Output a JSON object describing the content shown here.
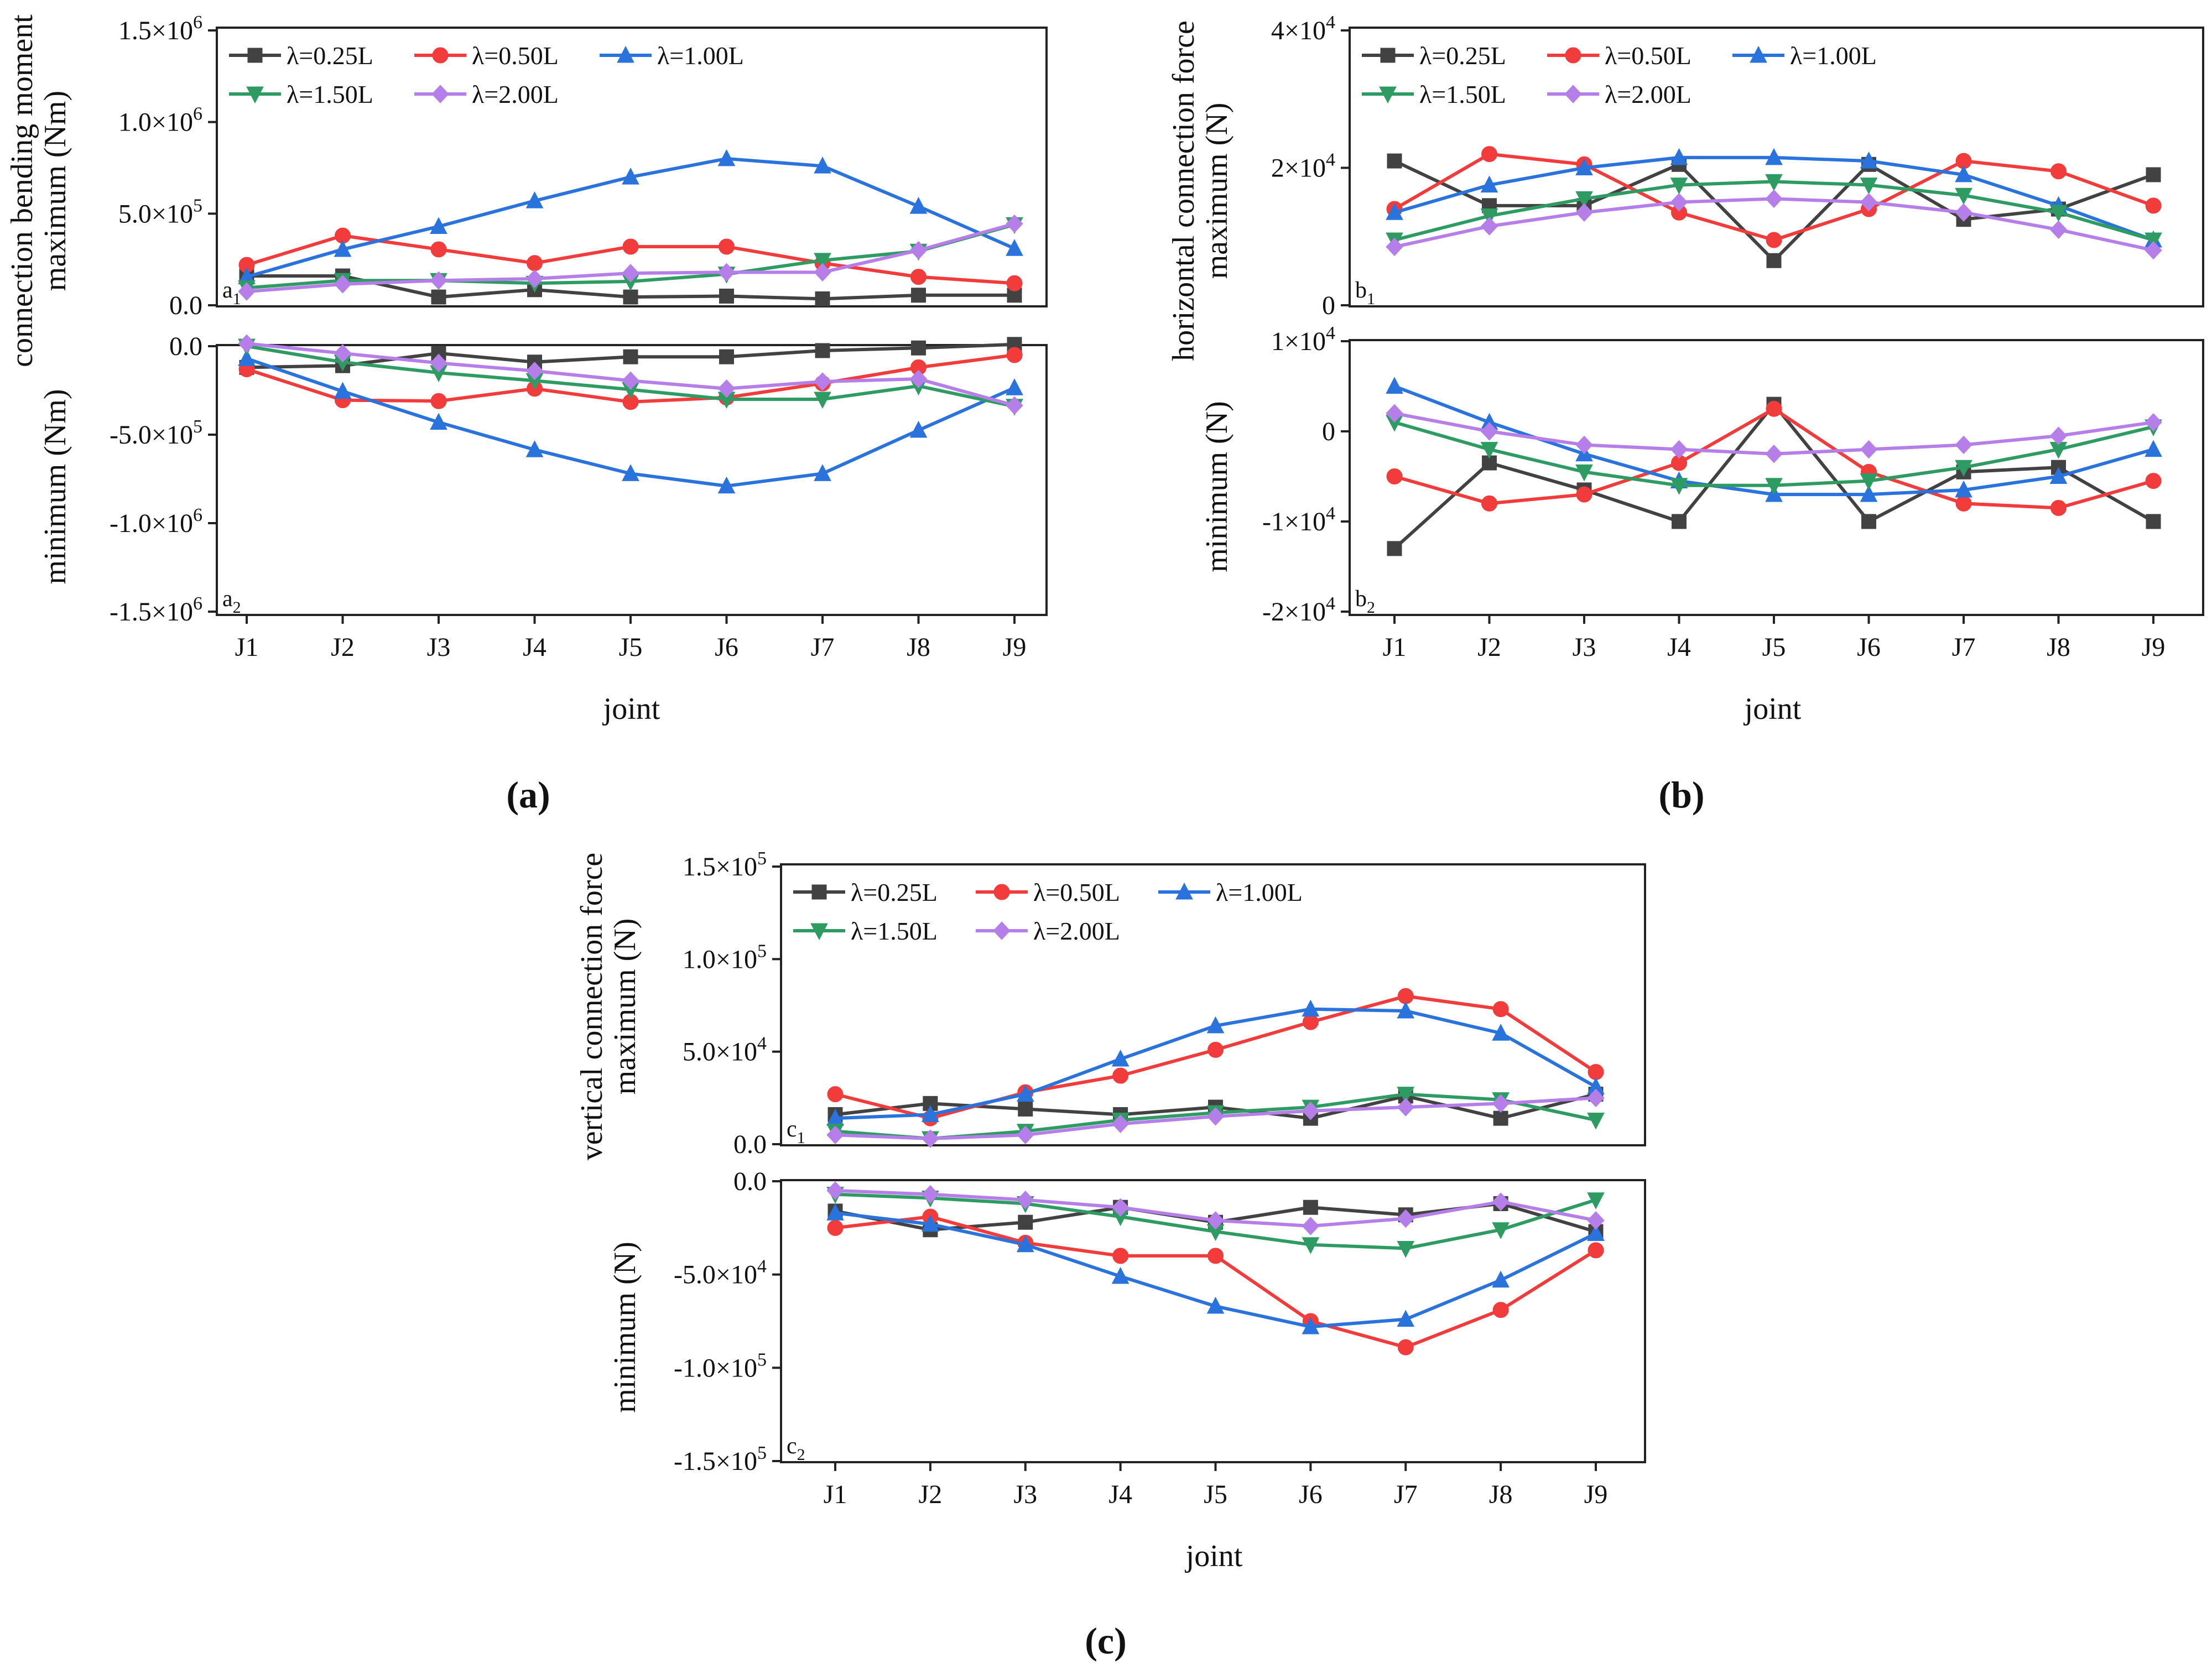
{
  "joint_label": "joint",
  "x_categories": [
    "J1",
    "J2",
    "J3",
    "J4",
    "J5",
    "J6",
    "J7",
    "J8",
    "J9"
  ],
  "series_styles": [
    {
      "name": "λ=0.25L",
      "color": "#424242",
      "marker": "square"
    },
    {
      "name": "λ=0.50L",
      "color": "#f23b3b",
      "marker": "circle"
    },
    {
      "name": "λ=1.00L",
      "color": "#2a73dc",
      "marker": "triangle-up"
    },
    {
      "name": "λ=1.50L",
      "color": "#2e9b63",
      "marker": "triangle-down"
    },
    {
      "name": "λ=2.00L",
      "color": "#b57ee8",
      "marker": "diamond"
    }
  ],
  "subfigures": [
    {
      "label": "(a)",
      "label_letter": "a"
    },
    {
      "label": "(b)",
      "label_letter": "b"
    },
    {
      "label": "(c)",
      "label_letter": "c"
    }
  ],
  "chart_data": [
    {
      "id": "a1",
      "type": "line",
      "panel_tag": "a",
      "panel_sub": "1",
      "ylabel": "connection bending moment",
      "ylabel_sub": "maximum (Nm)",
      "ylim": [
        0,
        1500000
      ],
      "yticks": [
        {
          "v": 0,
          "label": "0.0"
        },
        {
          "v": 500000,
          "m": "5.0",
          "e": "5"
        },
        {
          "v": 1000000,
          "m": "1.0",
          "e": "6"
        },
        {
          "v": 1500000,
          "m": "1.5",
          "e": "6"
        }
      ],
      "categories": [
        "J1",
        "J2",
        "J3",
        "J4",
        "J5",
        "J6",
        "J7",
        "J8",
        "J9"
      ],
      "series": [
        {
          "name": "λ=0.25L",
          "values": [
            160000,
            160000,
            45000,
            85000,
            45000,
            50000,
            35000,
            55000,
            55000
          ]
        },
        {
          "name": "λ=0.50L",
          "values": [
            220000,
            380000,
            305000,
            230000,
            320000,
            320000,
            230000,
            155000,
            120000
          ]
        },
        {
          "name": "λ=1.00L",
          "values": [
            155000,
            305000,
            430000,
            570000,
            700000,
            800000,
            760000,
            540000,
            310000
          ]
        },
        {
          "name": "λ=1.50L",
          "values": [
            95000,
            135000,
            135000,
            120000,
            130000,
            170000,
            245000,
            295000,
            440000
          ]
        },
        {
          "name": "λ=2.00L",
          "values": [
            75000,
            115000,
            135000,
            145000,
            175000,
            180000,
            180000,
            300000,
            445000
          ]
        }
      ]
    },
    {
      "id": "a2",
      "type": "line",
      "panel_tag": "a",
      "panel_sub": "2",
      "ylabel": "minimum (Nm)",
      "ylabel_sub": "",
      "ylim": [
        -1500000,
        0
      ],
      "yticks": [
        {
          "v": 0,
          "label": "0.0"
        },
        {
          "v": -500000,
          "m": "-5.0",
          "e": "5"
        },
        {
          "v": -1000000,
          "m": "-1.0",
          "e": "6"
        },
        {
          "v": -1500000,
          "m": "-1.5",
          "e": "6"
        }
      ],
      "categories": [
        "J1",
        "J2",
        "J3",
        "J4",
        "J5",
        "J6",
        "J7",
        "J8",
        "J9"
      ],
      "series": [
        {
          "name": "λ=0.25L",
          "values": [
            -120000,
            -110000,
            -40000,
            -90000,
            -60000,
            -60000,
            -25000,
            -10000,
            10000
          ]
        },
        {
          "name": "λ=0.50L",
          "values": [
            -130000,
            -305000,
            -310000,
            -240000,
            -315000,
            -290000,
            -210000,
            -120000,
            -50000
          ]
        },
        {
          "name": "λ=1.00L",
          "values": [
            -70000,
            -255000,
            -430000,
            -585000,
            -720000,
            -790000,
            -720000,
            -475000,
            -235000
          ]
        },
        {
          "name": "λ=1.50L",
          "values": [
            0,
            -90000,
            -150000,
            -195000,
            -245000,
            -300000,
            -300000,
            -225000,
            -340000
          ]
        },
        {
          "name": "λ=2.00L",
          "values": [
            15000,
            -40000,
            -95000,
            -140000,
            -195000,
            -240000,
            -200000,
            -185000,
            -335000
          ]
        }
      ]
    },
    {
      "id": "b1",
      "type": "line",
      "panel_tag": "b",
      "panel_sub": "1",
      "ylabel": "horizontal connection force",
      "ylabel_sub": "maximum (N)",
      "ylim": [
        0,
        40000
      ],
      "yticks": [
        {
          "v": 0,
          "label": "0"
        },
        {
          "v": 20000,
          "m": "2",
          "e": "4"
        },
        {
          "v": 40000,
          "m": "4",
          "e": "4"
        }
      ],
      "categories": [
        "J1",
        "J2",
        "J3",
        "J4",
        "J5",
        "J6",
        "J7",
        "J8",
        "J9"
      ],
      "series": [
        {
          "name": "λ=0.25L",
          "values": [
            21000,
            14500,
            14500,
            20500,
            6500,
            20500,
            12500,
            14000,
            19000
          ]
        },
        {
          "name": "λ=0.50L",
          "values": [
            14000,
            22000,
            20500,
            13500,
            9500,
            14000,
            21000,
            19500,
            14500
          ]
        },
        {
          "name": "λ=1.00L",
          "values": [
            13500,
            17500,
            20000,
            21500,
            21500,
            21000,
            19000,
            14500,
            9500
          ]
        },
        {
          "name": "λ=1.50L",
          "values": [
            9500,
            13000,
            15500,
            17500,
            18000,
            17500,
            16000,
            13500,
            9500
          ]
        },
        {
          "name": "λ=2.00L",
          "values": [
            8500,
            11500,
            13500,
            15000,
            15500,
            15000,
            13500,
            11000,
            8000
          ]
        }
      ]
    },
    {
      "id": "b2",
      "type": "line",
      "panel_tag": "b",
      "panel_sub": "2",
      "ylabel": "minimum (N)",
      "ylabel_sub": "",
      "ylim": [
        -20000,
        10000
      ],
      "yticks": [
        {
          "v": 10000,
          "m": "1",
          "e": "4"
        },
        {
          "v": 0,
          "label": "0"
        },
        {
          "v": -10000,
          "m": "-1",
          "e": "4"
        },
        {
          "v": -20000,
          "m": "-2",
          "e": "4"
        }
      ],
      "categories": [
        "J1",
        "J2",
        "J3",
        "J4",
        "J5",
        "J6",
        "J7",
        "J8",
        "J9"
      ],
      "series": [
        {
          "name": "λ=0.25L",
          "values": [
            -13000,
            -3500,
            -6500,
            -10000,
            3000,
            -10000,
            -4500,
            -4000,
            -10000
          ]
        },
        {
          "name": "λ=0.50L",
          "values": [
            -5000,
            -8000,
            -7000,
            -3500,
            2500,
            -4500,
            -8000,
            -8500,
            -5500
          ]
        },
        {
          "name": "λ=1.00L",
          "values": [
            5000,
            1000,
            -2500,
            -5500,
            -7000,
            -7000,
            -6500,
            -5000,
            -2000
          ]
        },
        {
          "name": "λ=1.50L",
          "values": [
            1000,
            -2000,
            -4500,
            -6000,
            -6000,
            -5500,
            -4000,
            -2000,
            500
          ]
        },
        {
          "name": "λ=2.00L",
          "values": [
            2000,
            0,
            -1500,
            -2000,
            -2500,
            -2000,
            -1500,
            -500,
            1000
          ]
        }
      ]
    },
    {
      "id": "c1",
      "type": "line",
      "panel_tag": "c",
      "panel_sub": "1",
      "ylabel": "vertical connection force",
      "ylabel_sub": "maximum (N)",
      "ylim": [
        0,
        150000
      ],
      "yticks": [
        {
          "v": 0,
          "label": "0.0"
        },
        {
          "v": 50000,
          "m": "5.0",
          "e": "4"
        },
        {
          "v": 100000,
          "m": "1.0",
          "e": "5"
        },
        {
          "v": 150000,
          "m": "1.5",
          "e": "5"
        }
      ],
      "categories": [
        "J1",
        "J2",
        "J3",
        "J4",
        "J5",
        "J6",
        "J7",
        "J8",
        "J9"
      ],
      "series": [
        {
          "name": "λ=0.25L",
          "values": [
            16000,
            22000,
            19000,
            16000,
            20000,
            14000,
            26000,
            14000,
            27000
          ]
        },
        {
          "name": "λ=0.50L",
          "values": [
            27000,
            14000,
            28000,
            37000,
            51000,
            66000,
            80000,
            73000,
            39000
          ]
        },
        {
          "name": "λ=1.00L",
          "values": [
            14000,
            16000,
            27000,
            46000,
            64000,
            73000,
            72000,
            60000,
            31000
          ]
        },
        {
          "name": "λ=1.50L",
          "values": [
            7000,
            3000,
            7000,
            13000,
            17000,
            20000,
            27000,
            24000,
            13000
          ]
        },
        {
          "name": "λ=2.00L",
          "values": [
            5000,
            3000,
            5000,
            11000,
            15000,
            18000,
            20000,
            22000,
            25000
          ]
        }
      ]
    },
    {
      "id": "c2",
      "type": "line",
      "panel_tag": "c",
      "panel_sub": "2",
      "ylabel": "minimum (N)",
      "ylabel_sub": "",
      "ylim": [
        -150000,
        0
      ],
      "yticks": [
        {
          "v": 0,
          "label": "0.0"
        },
        {
          "v": -50000,
          "m": "-5.0",
          "e": "4"
        },
        {
          "v": -100000,
          "m": "-1.0",
          "e": "5"
        },
        {
          "v": -150000,
          "m": "-1.5",
          "e": "5"
        }
      ],
      "categories": [
        "J1",
        "J2",
        "J3",
        "J4",
        "J5",
        "J6",
        "J7",
        "J8",
        "J9"
      ],
      "series": [
        {
          "name": "λ=0.25L",
          "values": [
            -16000,
            -26000,
            -22000,
            -14000,
            -22000,
            -14000,
            -18000,
            -12000,
            -27000
          ]
        },
        {
          "name": "λ=0.50L",
          "values": [
            -25000,
            -19000,
            -33000,
            -40000,
            -40000,
            -75000,
            -89000,
            -69000,
            -37000
          ]
        },
        {
          "name": "λ=1.00L",
          "values": [
            -17000,
            -23000,
            -34000,
            -51000,
            -67000,
            -78000,
            -74000,
            -53000,
            -28000
          ]
        },
        {
          "name": "λ=1.50L",
          "values": [
            -7000,
            -9000,
            -12000,
            -19000,
            -27000,
            -34000,
            -36000,
            -26000,
            -10000
          ]
        },
        {
          "name": "λ=2.00L",
          "values": [
            -5000,
            -7000,
            -10000,
            -14000,
            -21000,
            -24000,
            -20000,
            -11000,
            -21000
          ]
        }
      ]
    }
  ]
}
